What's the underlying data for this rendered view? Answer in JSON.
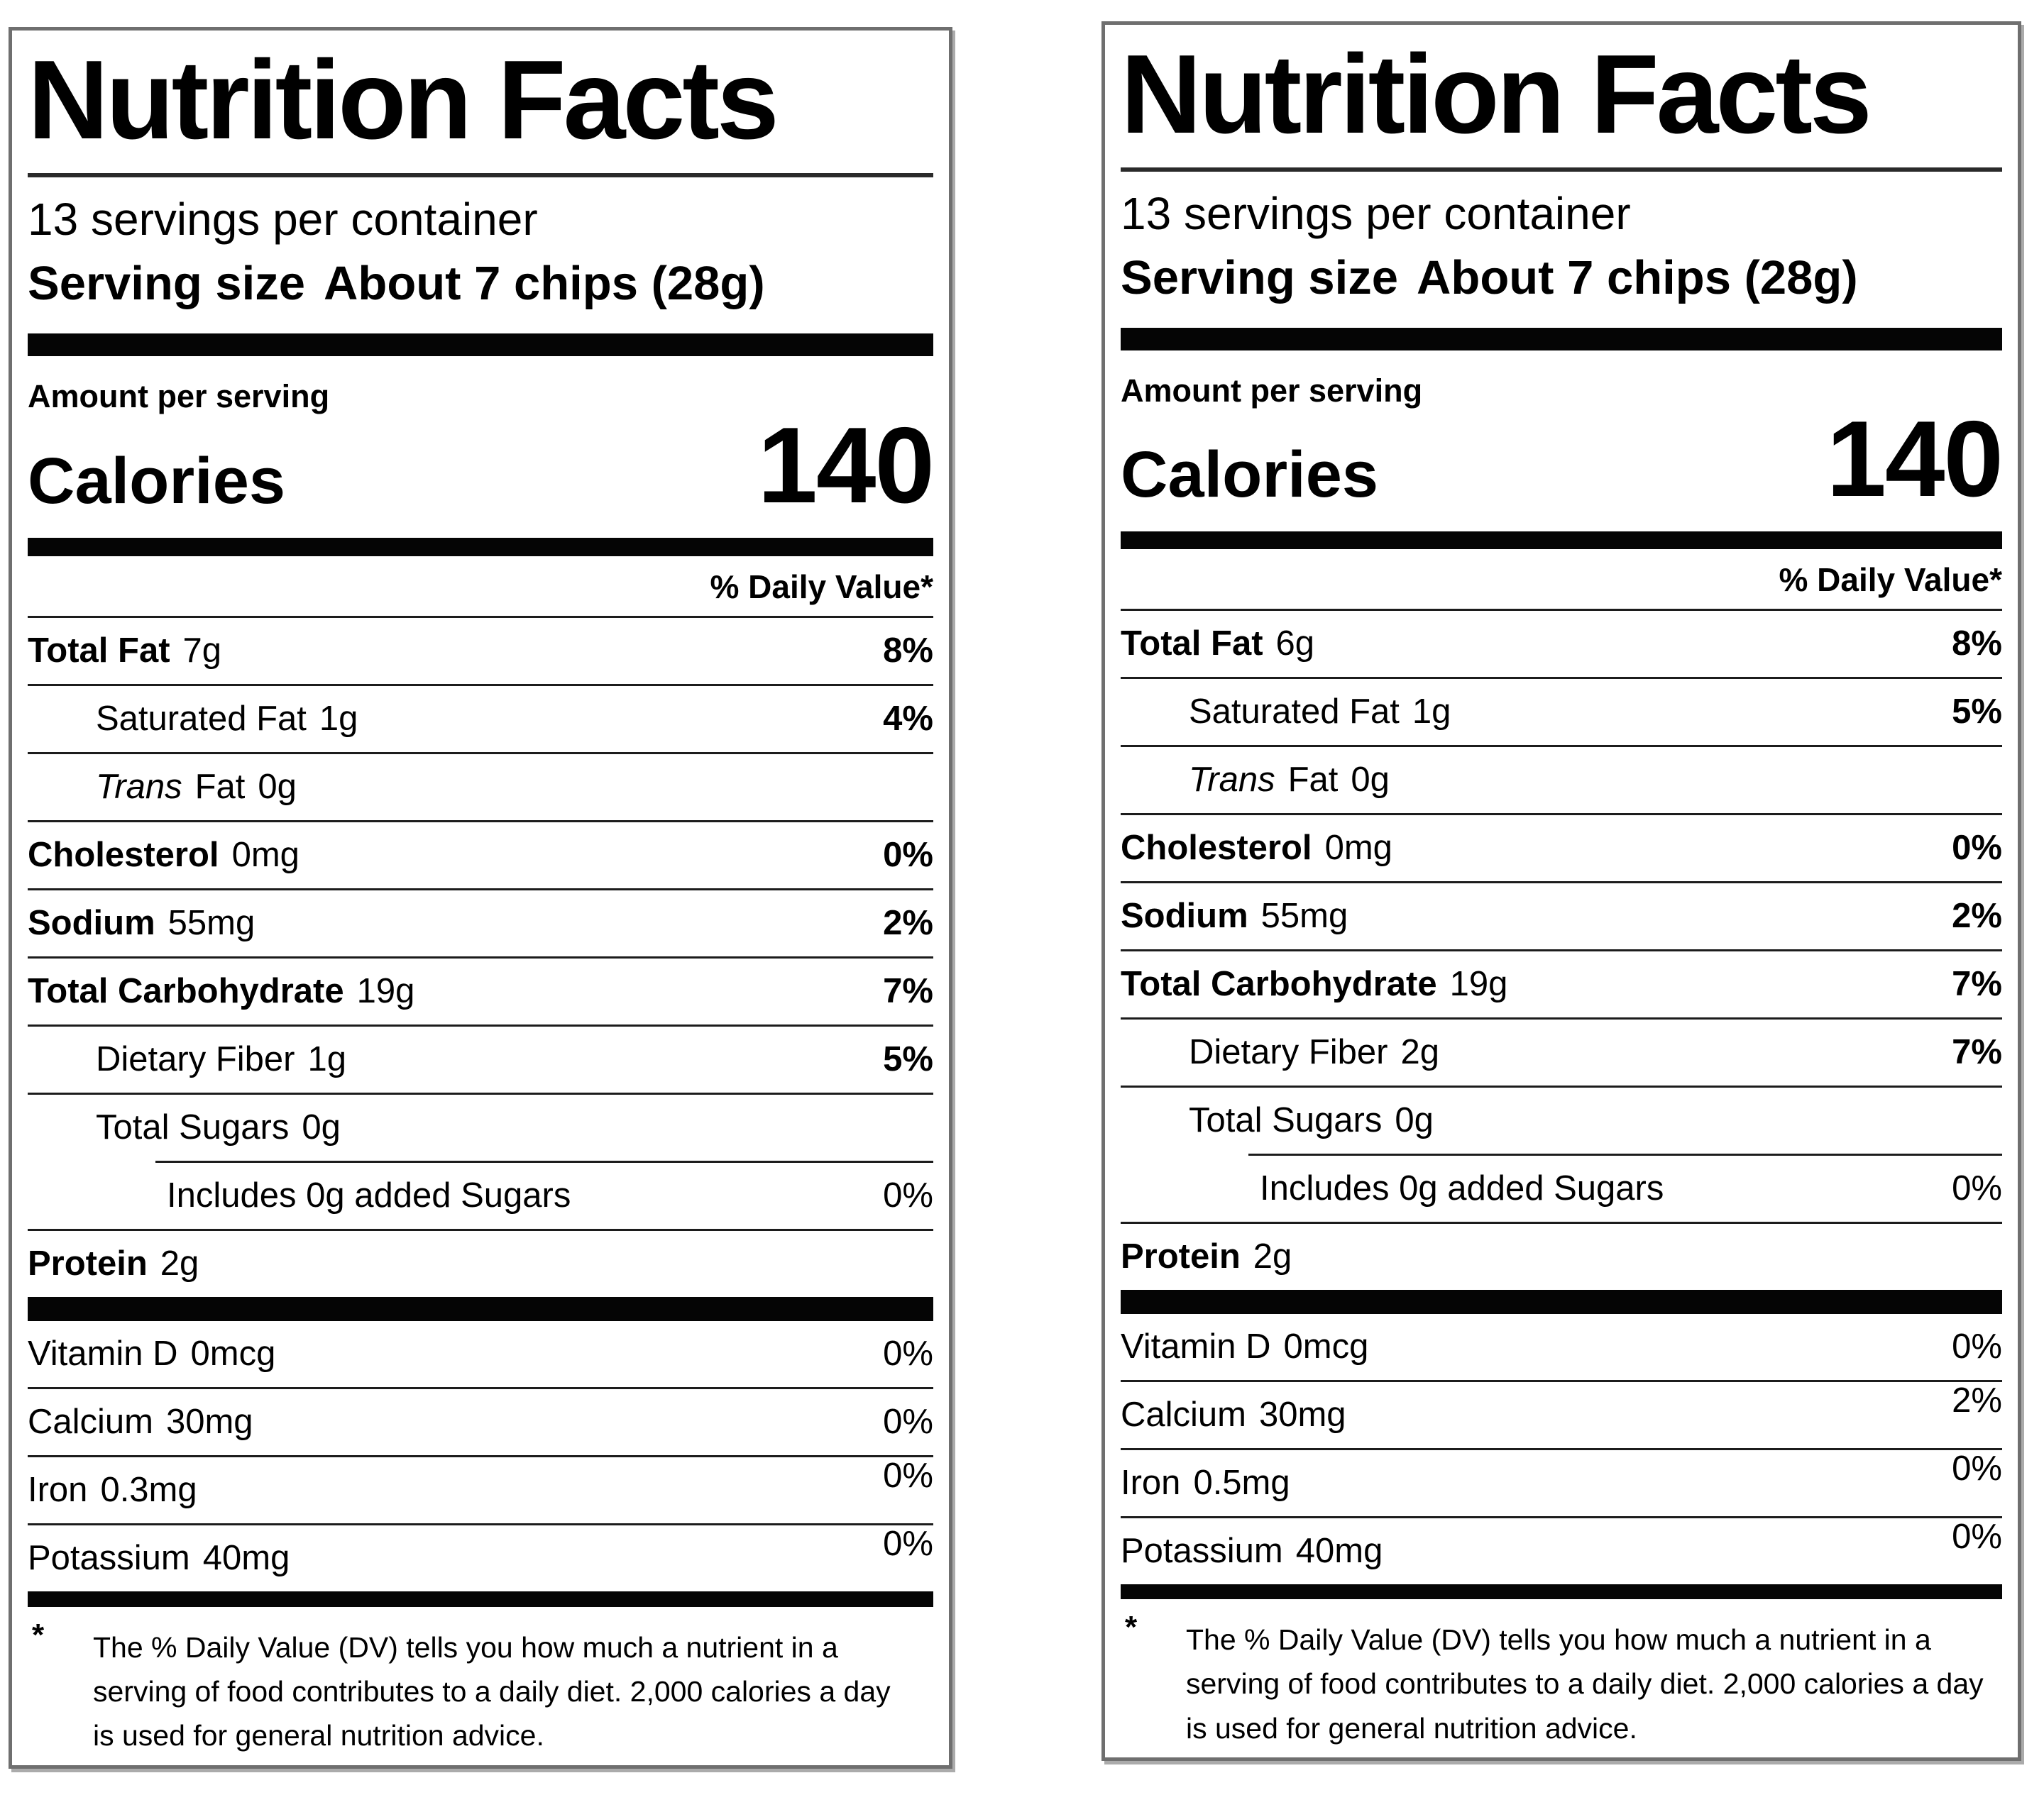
{
  "labels": {
    "left": {
      "title": "Nutrition Facts",
      "servings_per_container": "13 servings per container",
      "serving_size_label": "Serving size",
      "serving_size_value": "About 7 chips (28g)",
      "amount_per_serving": "Amount per serving",
      "calories_label": "Calories",
      "calories_value": "140",
      "daily_value_header": "% Daily Value*",
      "rows": [
        {
          "name": "Total Fat",
          "amount": "7g",
          "pct": "8%"
        },
        {
          "name": "Saturated Fat",
          "amount": "1g",
          "pct": "4%"
        },
        {
          "name_italic": "Trans",
          "name_rest": "Fat",
          "amount": "0g"
        },
        {
          "name": "Cholesterol",
          "amount": "0mg",
          "pct": "0%"
        },
        {
          "name": "Sodium",
          "amount": "55mg",
          "pct": "2%"
        },
        {
          "name": "Total Carbohydrate",
          "amount": "19g",
          "pct": "7%"
        },
        {
          "name": "Dietary Fiber",
          "amount": "1g",
          "pct": "5%"
        },
        {
          "name": "Total Sugars",
          "amount": "0g"
        },
        {
          "name": "Includes 0g added Sugars",
          "pct": "0%"
        },
        {
          "name": "Protein",
          "amount": "2g"
        }
      ],
      "vitamins": [
        {
          "name": "Vitamin D",
          "amount": "0mcg",
          "pct": "0%"
        },
        {
          "name": "Calcium",
          "amount": "30mg",
          "pct": "0%"
        },
        {
          "name": "Iron",
          "amount": "0.3mg",
          "pct": "0%"
        },
        {
          "name": "Potassium",
          "amount": "40mg",
          "pct": "0%"
        }
      ],
      "footnote_marker": "*",
      "footnote": "The % Daily Value (DV) tells you how much a nutrient in a serving of food contributes to a daily diet. 2,000 calories a day is used for general nutrition advice."
    },
    "right": {
      "title": "Nutrition Facts",
      "servings_per_container": "13 servings per container",
      "serving_size_label": "Serving size",
      "serving_size_value": "About 7 chips (28g)",
      "amount_per_serving": "Amount per serving",
      "calories_label": "Calories",
      "calories_value": "140",
      "daily_value_header": "% Daily Value*",
      "rows": [
        {
          "name": "Total Fat",
          "amount": "6g",
          "pct": "8%"
        },
        {
          "name": "Saturated Fat",
          "amount": "1g",
          "pct": "5%"
        },
        {
          "name_italic": "Trans",
          "name_rest": "Fat",
          "amount": "0g"
        },
        {
          "name": "Cholesterol",
          "amount": "0mg",
          "pct": "0%"
        },
        {
          "name": "Sodium",
          "amount": "55mg",
          "pct": "2%"
        },
        {
          "name": "Total Carbohydrate",
          "amount": "19g",
          "pct": "7%"
        },
        {
          "name": "Dietary Fiber",
          "amount": "2g",
          "pct": "7%"
        },
        {
          "name": "Total Sugars",
          "amount": "0g"
        },
        {
          "name": "Includes 0g added Sugars",
          "pct": "0%"
        },
        {
          "name": "Protein",
          "amount": "2g"
        }
      ],
      "vitamins": [
        {
          "name": "Vitamin D",
          "amount": "0mcg",
          "pct": "0%"
        },
        {
          "name": "Calcium",
          "amount": "30mg",
          "pct": "2%"
        },
        {
          "name": "Iron",
          "amount": "0.5mg",
          "pct": "0%"
        },
        {
          "name": "Potassium",
          "amount": "40mg",
          "pct": "0%"
        }
      ],
      "footnote_marker": "*",
      "footnote": "The % Daily Value (DV) tells you how much a nutrient in a serving of food contributes to a daily diet. 2,000 calories a day is used for general nutrition advice."
    }
  }
}
